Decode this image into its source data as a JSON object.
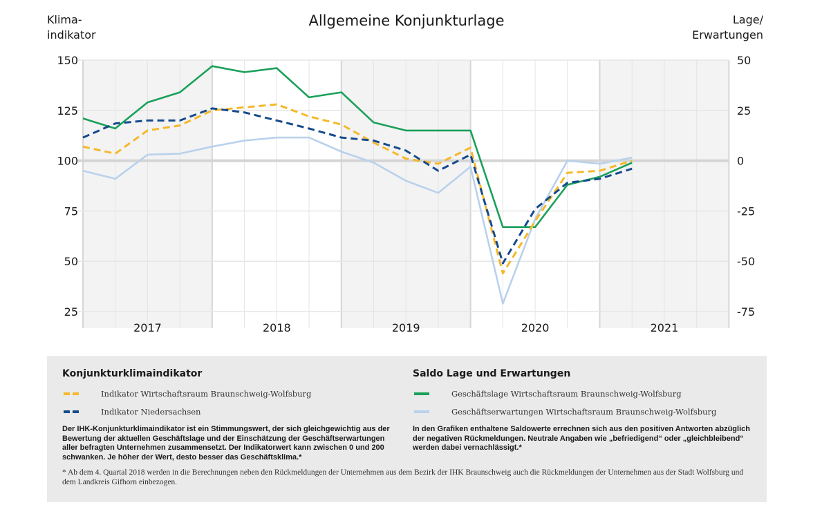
{
  "chart_data": {
    "type": "line",
    "title": "Allgemeine Konjunkturlage",
    "ylabel_left": "Klima-\nindikator",
    "ylabel_right": "Lage/\nErwartungen",
    "ylim_left": [
      25,
      150
    ],
    "ylim_right": [
      -75,
      50
    ],
    "yticks_left": [
      150,
      125,
      100,
      75,
      50,
      25
    ],
    "yticks_right": [
      "50",
      "25",
      "0",
      "-25",
      "-50",
      "-75"
    ],
    "xticks": [
      "2017",
      "2018",
      "2019",
      "2020",
      "2021"
    ],
    "x": [
      "2017-1",
      "2017-2",
      "2017-3",
      "2017-4",
      "2018-1",
      "2018-2",
      "2018-3",
      "2018-4",
      "2019-1",
      "2019-2",
      "2019-3",
      "2019-4",
      "2020-1",
      "2020-2",
      "2020-3",
      "2020-4",
      "2021-1",
      "2021-2"
    ],
    "grid": true,
    "series": [
      {
        "name": "Geschäftslage Wirtschaftsraum Braunschweig-Wolfsburg",
        "axis": "right",
        "color": "#1aa05a",
        "style": "solid",
        "values": [
          21,
          16,
          29,
          34,
          47,
          44,
          46,
          31.5,
          34,
          19,
          15,
          15,
          15,
          -33,
          -33,
          -12,
          -8,
          -1
        ]
      },
      {
        "name": "Geschäftserwartungen Wirtschaftsraum Braunschweig-Wolfsburg",
        "axis": "right",
        "color": "#b9d1ec",
        "style": "solid",
        "values": [
          -5,
          -9,
          3,
          3.5,
          7,
          10,
          11.5,
          11.5,
          4.5,
          -1,
          -10,
          -16,
          -3,
          -71,
          -29,
          0,
          -1.5,
          1.5
        ]
      },
      {
        "name": "Indikator Wirtschaftsraum Braunschweig-Wolfsburg",
        "axis": "left",
        "color": "#f5b82a",
        "style": "dashed",
        "values": [
          107,
          103.5,
          115,
          117.5,
          125,
          126.5,
          128,
          122,
          118,
          109,
          101,
          98.5,
          106.5,
          44,
          70,
          94,
          95,
          100
        ]
      },
      {
        "name": "Indikator Niedersachsen",
        "axis": "left",
        "color": "#164a8c",
        "style": "dashed",
        "values": [
          111.5,
          118.5,
          120,
          120,
          126,
          124,
          120,
          116,
          111.5,
          110,
          105,
          95,
          103,
          49,
          76,
          89,
          91,
          96
        ]
      }
    ]
  },
  "legend": {
    "left_heading": "Konjunkturklimaindikator",
    "left_items": [
      "Indikator Wirtschaftsraum Braunschweig-Wolfsburg",
      "Indikator Niedersachsen"
    ],
    "left_note": "Der IHK-Konjunkturklimaindikator ist ein Stimmungswert, der sich gleichgewichtig aus der Bewertung der aktuellen Geschäftslage und der Einschätzung der Geschäftserwartungen aller befragten Unternehmen zusammensetzt. Der Indikatorwert kann zwischen 0 und 200 schwanken. Je höher der Wert, desto besser das Geschäftsklima.*",
    "right_heading": "Saldo Lage und Erwartungen",
    "right_items": [
      "Geschäftslage Wirtschaftsraum Braunschweig-Wolfsburg",
      "Geschäftserwartungen Wirtschaftsraum Braunschweig-Wolfsburg"
    ],
    "right_note": "In den Grafiken enthaltene Saldowerte errechnen sich aus den positiven Antworten abzüglich der negativen Rückmeldungen. Neutrale Angaben wie „befriedigend“ oder „gleichbleibend“ werden dabei vernachlässigt.*",
    "footnote": "* Ab dem 4. Quartal 2018 werden in die Berechnungen neben den Rückmeldungen der Unternehmen aus dem Bezirk der IHK Braunschweig auch die Rückmeldungen der Unternehmen aus der Stadt Wolfsburg und dem Landkreis Gifhorn einbezogen."
  }
}
